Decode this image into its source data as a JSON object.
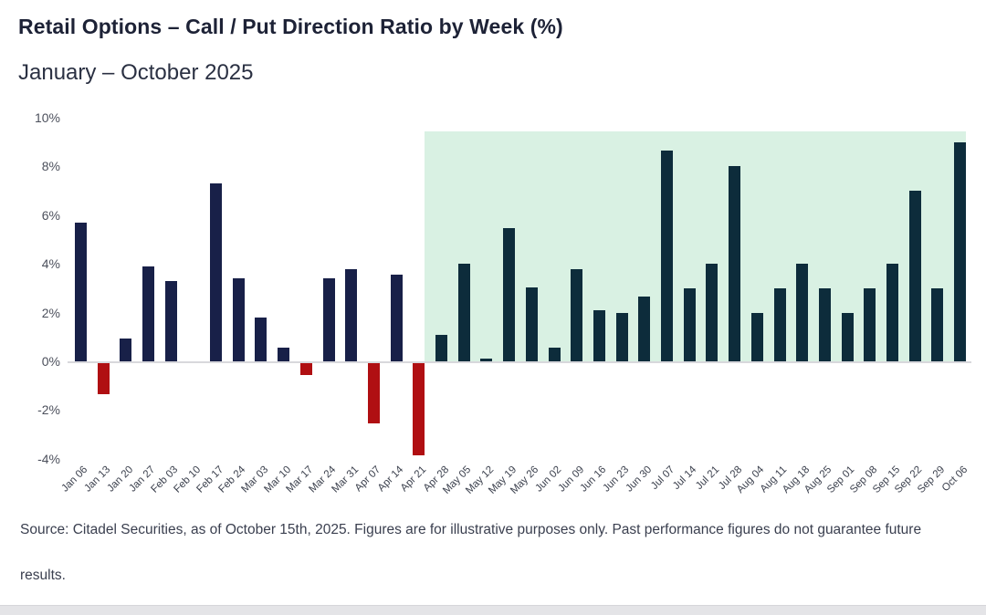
{
  "header": {
    "title": "Retail Options – Call / Put Direction Ratio by Week (%)",
    "subtitle": "January – October 2025"
  },
  "chart_data": {
    "type": "bar",
    "title": "Retail Options – Call / Put Direction Ratio by Week (%)",
    "subtitle": "January – October 2025",
    "xlabel": "",
    "ylabel": "",
    "ylim": [
      -4,
      10
    ],
    "y_tick_labels": [
      "10%",
      "8%",
      "6%",
      "4%",
      "2%",
      "0%",
      "-2%",
      "-4%"
    ],
    "y_tick_values": [
      10,
      8,
      6,
      4,
      2,
      0,
      -2,
      -4
    ],
    "grid": false,
    "legend": "none",
    "categories": [
      "Jan 06",
      "Jan 13",
      "Jan 20",
      "Jan 27",
      "Feb 03",
      "Feb 10",
      "Feb 17",
      "Feb 24",
      "Mar 03",
      "Mar 10",
      "Mar 17",
      "Mar 24",
      "Mar 31",
      "Apr 07",
      "Apr 14",
      "Apr 21",
      "Apr 28",
      "May 05",
      "May 12",
      "May 19",
      "May 26",
      "Jun 02",
      "Jun 09",
      "Jun 16",
      "Jun 23",
      "Jun 30",
      "Jul 07",
      "Jul 14",
      "Jul 21",
      "Jul 28",
      "Aug 04",
      "Aug 11",
      "Aug 18",
      "Aug 25",
      "Sep 01",
      "Sep 08",
      "Sep 15",
      "Sep 22",
      "Sep 29",
      "Oct 06"
    ],
    "values": [
      5.7,
      -1.3,
      0.95,
      3.9,
      3.3,
      0,
      7.3,
      3.4,
      1.8,
      0.55,
      -0.5,
      3.4,
      3.8,
      -2.5,
      3.55,
      -3.8,
      1.1,
      4.0,
      0.1,
      5.45,
      3.05,
      0.55,
      3.8,
      2.1,
      2.0,
      2.65,
      8.65,
      3.0,
      4.0,
      8.0,
      2.0,
      3.0,
      4.0,
      3.0,
      2.0,
      3.0,
      4.0,
      7.0,
      3.0,
      9.0
    ],
    "highlight": {
      "start_category": "Apr 28",
      "end_category": "Oct 06",
      "start_index": 16,
      "background_color": "#d9f1e3"
    },
    "colors": {
      "bar_positive": "#182048",
      "bar_negative": "#b00f12",
      "bar_highlighted": "#0d2c3b",
      "axis_line": "#d8d8dc"
    }
  },
  "footer": {
    "source": "Source: Citadel Securities, as of October 15th, 2025. Figures are for illustrative purposes only. Past performance figures do not guarantee future results."
  }
}
